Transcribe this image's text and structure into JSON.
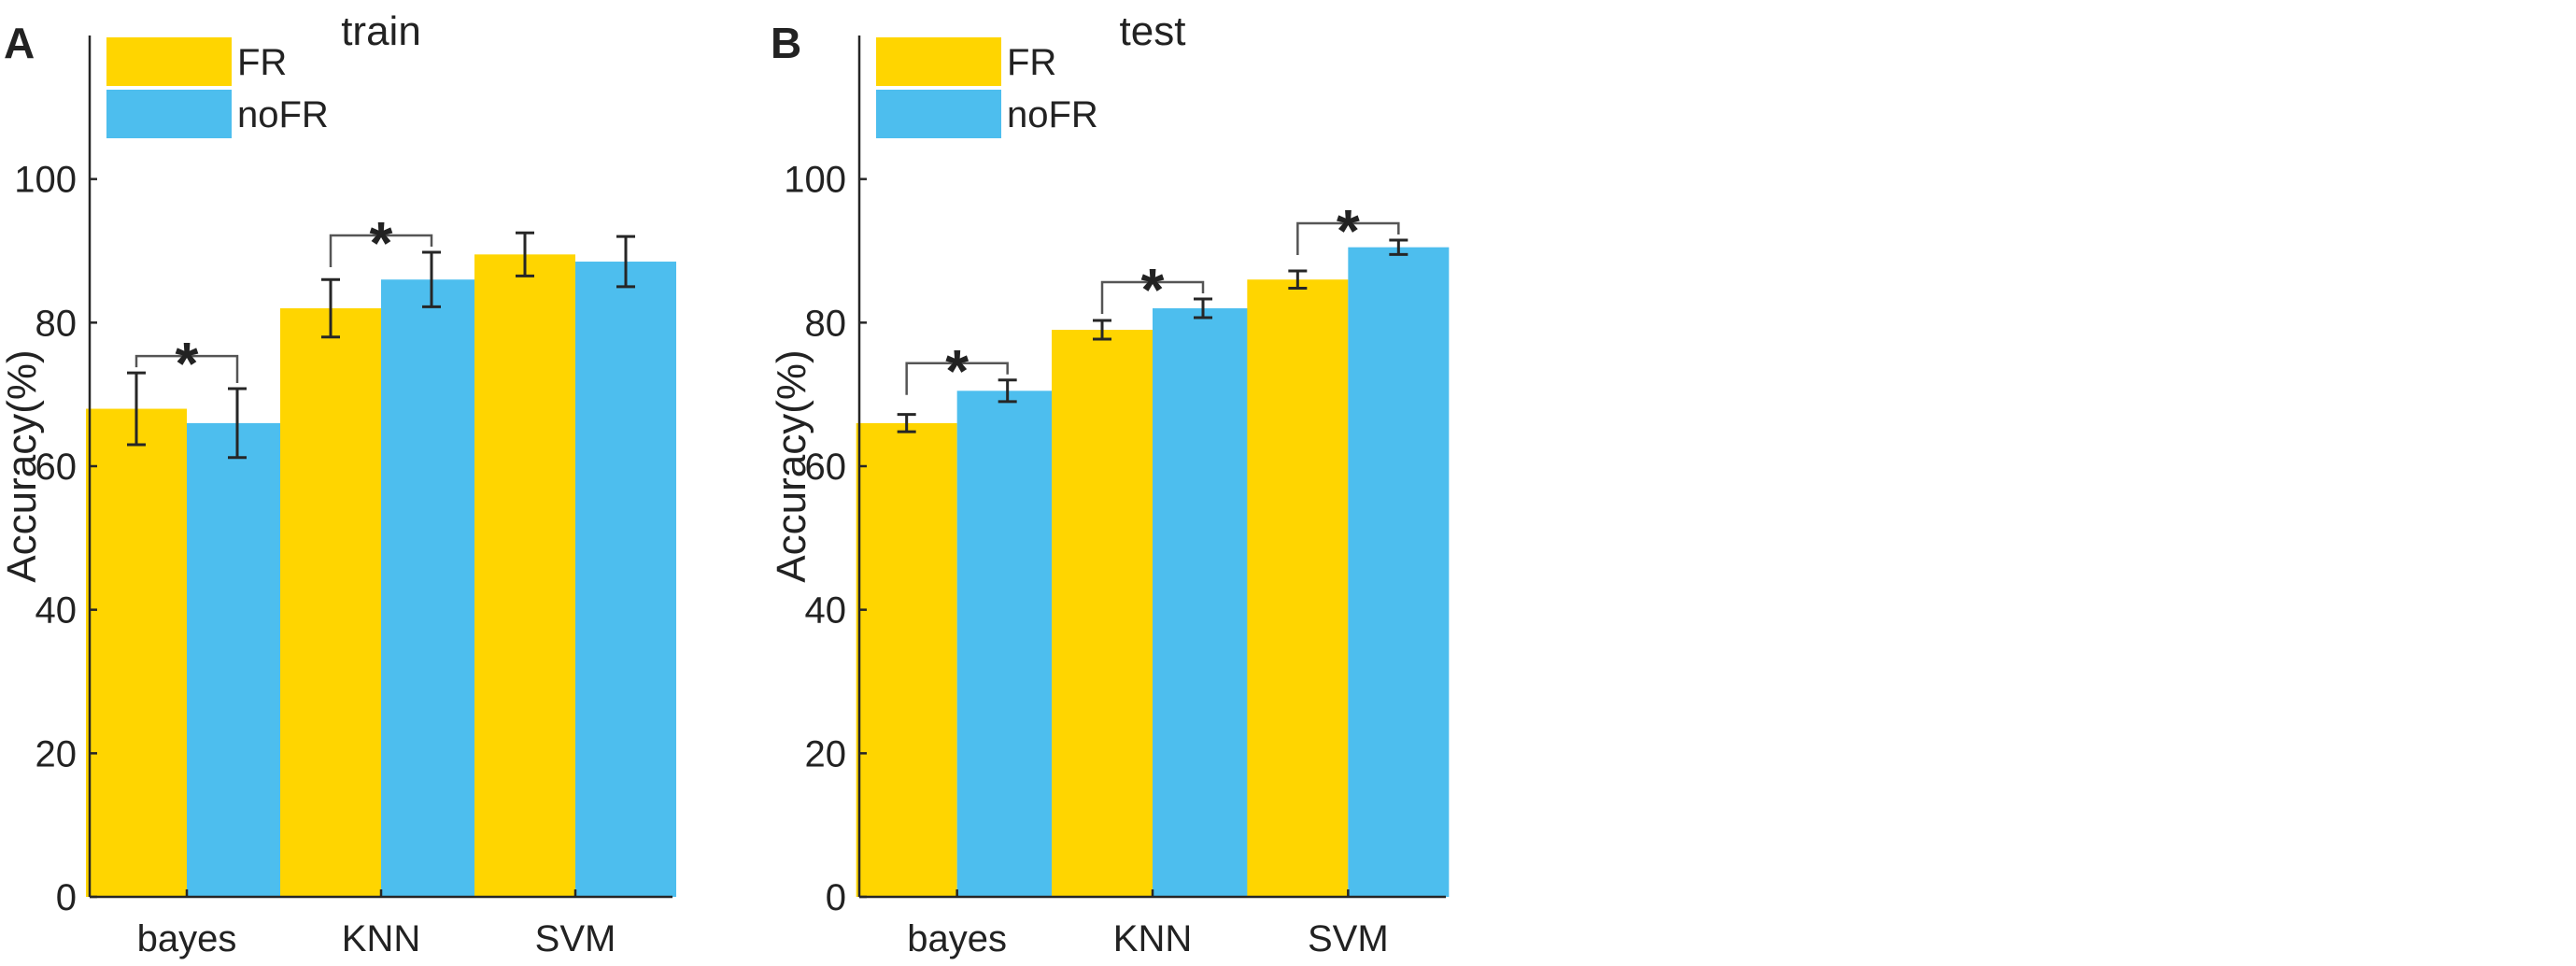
{
  "colors": {
    "fr": "#FFD500",
    "nofr": "#4DBEEE",
    "axis": "#262626",
    "text": "#222222"
  },
  "panel_letters": [
    "A",
    "B"
  ],
  "chart_data": [
    {
      "type": "bar",
      "panel": "A",
      "title": "train",
      "xlabel": "",
      "ylabel": "Accuracy(%)",
      "ylim": [
        0,
        120
      ],
      "yticks": [
        0,
        20,
        40,
        60,
        80,
        100
      ],
      "categories": [
        "bayes",
        "KNN",
        "SVM"
      ],
      "series": [
        {
          "name": "FR",
          "values": [
            68,
            82,
            89.5
          ],
          "errors": [
            5,
            4,
            3
          ]
        },
        {
          "name": "noFR",
          "values": [
            66,
            86,
            88.5
          ],
          "errors": [
            4.8,
            3.8,
            3.5
          ]
        }
      ],
      "legend": {
        "position": "top-left",
        "entries": [
          "FR",
          "noFR"
        ]
      },
      "significance": [
        {
          "category": "bayes",
          "label": "*"
        },
        {
          "category": "KNN",
          "label": "*"
        }
      ],
      "grid": false
    },
    {
      "type": "bar",
      "panel": "B",
      "title": "test",
      "xlabel": "",
      "ylabel": "Accuracy(%)",
      "ylim": [
        0,
        120
      ],
      "yticks": [
        0,
        20,
        40,
        60,
        80,
        100
      ],
      "categories": [
        "bayes",
        "KNN",
        "SVM"
      ],
      "series": [
        {
          "name": "FR",
          "values": [
            66,
            79,
            86
          ],
          "errors": [
            1.2,
            1.3,
            1.2
          ]
        },
        {
          "name": "noFR",
          "values": [
            70.5,
            82,
            90.5
          ],
          "errors": [
            1.5,
            1.3,
            1.0
          ]
        }
      ],
      "legend": {
        "position": "top-left",
        "entries": [
          "FR",
          "noFR"
        ]
      },
      "significance": [
        {
          "category": "bayes",
          "label": "*"
        },
        {
          "category": "KNN",
          "label": "*"
        },
        {
          "category": "SVM",
          "label": "*"
        }
      ],
      "grid": false
    }
  ]
}
